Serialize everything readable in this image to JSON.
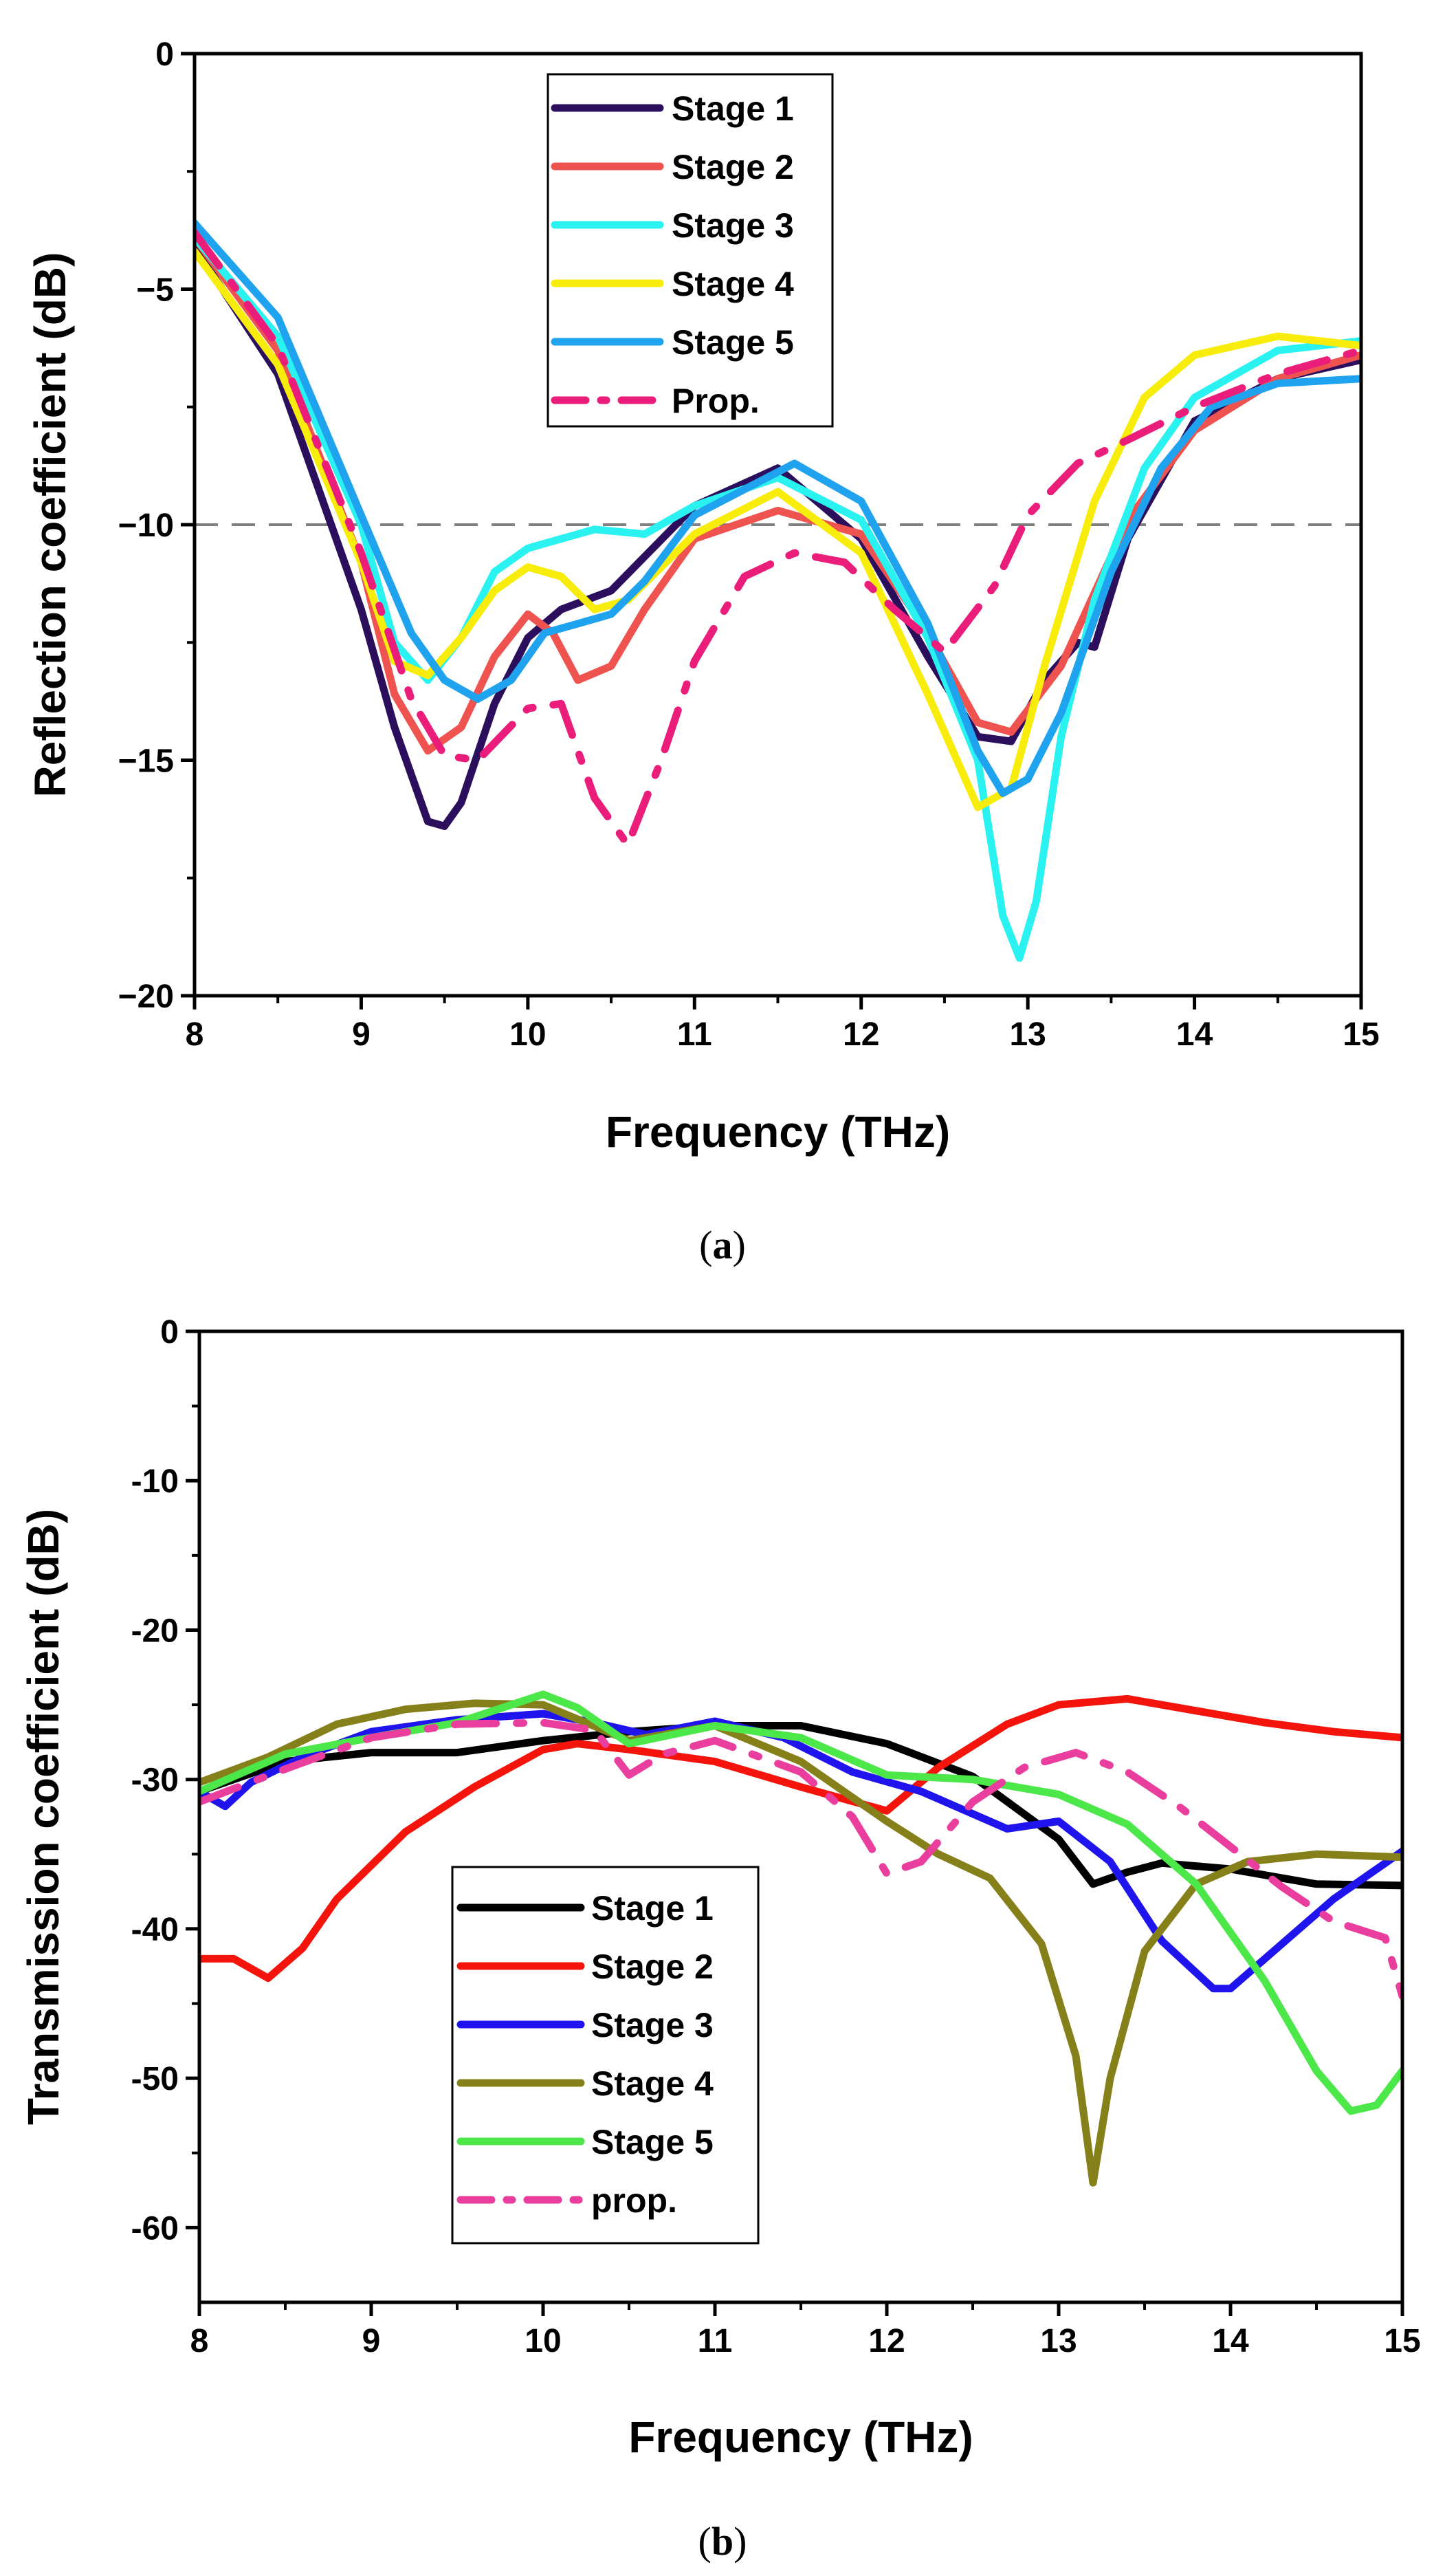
{
  "chart_data": [
    {
      "type": "line",
      "panel_label": "a",
      "xlabel": "Frequency (THz)",
      "ylabel": "Reflection coefficient (dB)",
      "xlim": [
        8,
        15
      ],
      "ylim": [
        -20,
        0
      ],
      "xticks": [
        8,
        9,
        10,
        11,
        12,
        13,
        14,
        15
      ],
      "yticks": [
        0,
        -5,
        -10,
        -15,
        -20
      ],
      "ytick_labels": [
        "0",
        "−5",
        "−10",
        "−15",
        "−20"
      ],
      "reference_line": {
        "y": -10,
        "style": "dashed",
        "color": "#808080"
      },
      "legend_position": "top-center",
      "series": [
        {
          "name": "Stage 1",
          "color": "#2b0f5c",
          "dash": "solid",
          "x": [
            8,
            8.5,
            9,
            9.2,
            9.4,
            9.5,
            9.6,
            9.8,
            10,
            10.2,
            10.5,
            11,
            11.5,
            12,
            12.4,
            12.7,
            12.9,
            13.1,
            13.3,
            13.4,
            13.6,
            14,
            14.5,
            15
          ],
          "y": [
            -4.1,
            -6.8,
            -11.8,
            -14.3,
            -16.3,
            -16.4,
            -15.9,
            -13.8,
            -12.4,
            -11.8,
            -11.4,
            -9.6,
            -8.8,
            -10.3,
            -12.8,
            -14.5,
            -14.6,
            -13.3,
            -12.5,
            -12.6,
            -10.3,
            -7.8,
            -6.9,
            -6.5
          ]
        },
        {
          "name": "Stage 2",
          "color": "#ef5350",
          "dash": "solid",
          "x": [
            8,
            8.5,
            9,
            9.2,
            9.4,
            9.6,
            9.8,
            10,
            10.15,
            10.3,
            10.5,
            10.7,
            11,
            11.5,
            12,
            12.4,
            12.7,
            12.9,
            13.2,
            13.6,
            14,
            14.5,
            15
          ],
          "y": [
            -3.9,
            -6.3,
            -10.8,
            -13.6,
            -14.8,
            -14.3,
            -12.8,
            -11.9,
            -12.3,
            -13.3,
            -13.0,
            -11.8,
            -10.3,
            -9.7,
            -10.2,
            -12.3,
            -14.2,
            -14.4,
            -13.0,
            -9.9,
            -8.0,
            -6.9,
            -6.4
          ]
        },
        {
          "name": "Stage 3",
          "color": "#29f2f0",
          "dash": "solid",
          "x": [
            8,
            8.5,
            9,
            9.2,
            9.4,
            9.6,
            9.8,
            10,
            10.2,
            10.4,
            10.7,
            11,
            11.5,
            12,
            12.4,
            12.7,
            12.85,
            12.95,
            13.05,
            13.2,
            13.4,
            13.7,
            14,
            14.5,
            15
          ],
          "y": [
            -3.9,
            -6.0,
            -10.0,
            -12.5,
            -13.3,
            -12.4,
            -11.0,
            -10.5,
            -10.3,
            -10.1,
            -10.2,
            -9.6,
            -9.0,
            -9.9,
            -12.4,
            -15.0,
            -18.3,
            -19.2,
            -18.0,
            -14.5,
            -11.6,
            -8.8,
            -7.3,
            -6.3,
            -6.1
          ]
        },
        {
          "name": "Stage 4",
          "color": "#f7ec0a",
          "dash": "solid",
          "x": [
            8,
            8.5,
            9,
            9.2,
            9.4,
            9.6,
            9.8,
            10,
            10.2,
            10.4,
            10.6,
            11,
            11.5,
            12,
            12.4,
            12.7,
            12.9,
            13.1,
            13.4,
            13.7,
            14,
            14.5,
            15
          ],
          "y": [
            -4.2,
            -6.6,
            -10.8,
            -12.9,
            -13.2,
            -12.4,
            -11.4,
            -10.9,
            -11.1,
            -11.8,
            -11.6,
            -10.2,
            -9.3,
            -10.6,
            -13.6,
            -16.0,
            -15.6,
            -13.0,
            -9.5,
            -7.3,
            -6.4,
            -6.0,
            -6.2
          ]
        },
        {
          "name": "Stage 5",
          "color": "#1fa3ef",
          "dash": "solid",
          "x": [
            8,
            8.5,
            9,
            9.3,
            9.5,
            9.7,
            9.9,
            10.1,
            10.3,
            10.5,
            10.7,
            11,
            11.6,
            12,
            12.4,
            12.7,
            12.85,
            13,
            13.2,
            13.5,
            13.8,
            14.1,
            14.5,
            15
          ],
          "y": [
            -3.6,
            -5.6,
            -9.8,
            -12.3,
            -13.3,
            -13.7,
            -13.3,
            -12.3,
            -12.1,
            -11.9,
            -11.2,
            -9.8,
            -8.7,
            -9.5,
            -12.1,
            -14.8,
            -15.7,
            -15.4,
            -14.0,
            -11.0,
            -8.8,
            -7.5,
            -7.0,
            -6.9
          ]
        },
        {
          "name": "Prop.",
          "color": "#ea1e7a",
          "dash": "dashdot",
          "x": [
            8,
            8.5,
            9,
            9.3,
            9.5,
            9.7,
            10,
            10.2,
            10.4,
            10.6,
            10.8,
            11,
            11.3,
            11.6,
            11.9,
            12.2,
            12.5,
            12.8,
            13,
            13.3,
            13.6,
            14,
            14.5,
            15
          ],
          "y": [
            -3.8,
            -6.2,
            -10.6,
            -13.7,
            -14.9,
            -15.0,
            -13.9,
            -13.8,
            -15.8,
            -16.8,
            -15.0,
            -12.9,
            -11.1,
            -10.6,
            -10.8,
            -11.8,
            -12.7,
            -11.3,
            -9.8,
            -8.7,
            -8.2,
            -7.5,
            -6.8,
            -6.3
          ]
        }
      ]
    },
    {
      "type": "line",
      "panel_label": "b",
      "xlabel": "Frequency (THz)",
      "ylabel": "Transmission coefficient (dB)",
      "xlim": [
        8,
        15
      ],
      "ylim": [
        -65,
        0
      ],
      "xticks": [
        8,
        9,
        10,
        11,
        12,
        13,
        14,
        15
      ],
      "yticks": [
        0,
        -10,
        -20,
        -30,
        -40,
        -50,
        -60
      ],
      "ytick_labels": [
        "0",
        "-10",
        "-20",
        "-30",
        "-40",
        "-50",
        "-60"
      ],
      "legend_position": "bottom-left",
      "series": [
        {
          "name": "Stage 1",
          "color": "#000000",
          "dash": "solid",
          "x": [
            8,
            8.5,
            9,
            9.5,
            10,
            10.5,
            11,
            11.5,
            12,
            12.5,
            13,
            13.2,
            13.4,
            13.6,
            14,
            14.5,
            15
          ],
          "y": [
            -30.8,
            -28.8,
            -28.2,
            -28.2,
            -27.4,
            -26.8,
            -26.4,
            -26.4,
            -27.6,
            -29.8,
            -34.0,
            -37.0,
            -36.2,
            -35.6,
            -36.0,
            -37.0,
            -37.1
          ]
        },
        {
          "name": "Stage 2",
          "color": "#f5140c",
          "dash": "solid",
          "x": [
            8,
            8.2,
            8.4,
            8.6,
            8.8,
            9.2,
            9.6,
            10,
            10.2,
            10.5,
            11,
            11.5,
            12,
            12.3,
            12.7,
            13,
            13.4,
            13.8,
            14.2,
            14.6,
            15
          ],
          "y": [
            -42.0,
            -42.0,
            -43.3,
            -41.3,
            -38.0,
            -33.5,
            -30.5,
            -28.0,
            -27.6,
            -28.0,
            -28.8,
            -30.5,
            -32.1,
            -29.2,
            -26.3,
            -25.0,
            -24.6,
            -25.4,
            -26.2,
            -26.8,
            -27.2
          ]
        },
        {
          "name": "Stage 3",
          "color": "#1f14ee",
          "dash": "solid",
          "x": [
            8,
            8.15,
            8.3,
            8.6,
            9,
            9.5,
            10,
            10.3,
            10.6,
            11,
            11.4,
            11.8,
            12.2,
            12.5,
            12.7,
            13,
            13.3,
            13.6,
            13.9,
            14.0,
            14.3,
            14.6,
            15
          ],
          "y": [
            -30.8,
            -31.8,
            -30.2,
            -28.5,
            -26.8,
            -26.0,
            -25.6,
            -26.2,
            -27.0,
            -26.1,
            -27.2,
            -29.5,
            -30.8,
            -32.3,
            -33.3,
            -32.8,
            -35.5,
            -40.8,
            -44.0,
            -44.0,
            -41.0,
            -38.0,
            -34.8
          ]
        },
        {
          "name": "Stage 4",
          "color": "#85801a",
          "dash": "solid",
          "x": [
            8,
            8.4,
            8.8,
            9.2,
            9.6,
            10,
            10.5,
            11,
            11.5,
            12,
            12.3,
            12.6,
            12.9,
            13.1,
            13.2,
            13.3,
            13.5,
            13.8,
            14.1,
            14.5,
            15
          ],
          "y": [
            -30.2,
            -28.5,
            -26.3,
            -25.3,
            -24.9,
            -25.0,
            -27.4,
            -26.4,
            -28.8,
            -32.8,
            -35.0,
            -36.6,
            -41.0,
            -48.5,
            -57.0,
            -50.0,
            -41.5,
            -37.0,
            -35.5,
            -35.0,
            -35.2
          ]
        },
        {
          "name": "Stage 5",
          "color": "#4ce84a",
          "dash": "solid",
          "x": [
            8,
            8.5,
            9,
            9.5,
            10,
            10.2,
            10.5,
            11,
            11.5,
            12,
            12.5,
            13,
            13.4,
            13.8,
            14.2,
            14.5,
            14.7,
            14.85,
            15
          ],
          "y": [
            -30.8,
            -28.3,
            -27.2,
            -26.2,
            -24.3,
            -25.2,
            -27.6,
            -26.4,
            -27.2,
            -29.7,
            -30.0,
            -31.0,
            -33.0,
            -37.0,
            -43.5,
            -49.5,
            -52.2,
            -51.8,
            -49.5
          ]
        },
        {
          "name": "prop.",
          "color": "#ea3e9e",
          "dash": "dashdot",
          "x": [
            8,
            8.5,
            9,
            9.5,
            10,
            10.3,
            10.5,
            10.7,
            11,
            11.5,
            11.8,
            12,
            12.2,
            12.5,
            12.8,
            13.1,
            13.4,
            13.7,
            14,
            14.3,
            14.6,
            14.9,
            15
          ],
          "y": [
            -31.5,
            -29.3,
            -27.2,
            -26.3,
            -26.2,
            -26.7,
            -29.7,
            -28.3,
            -27.4,
            -29.5,
            -32.5,
            -36.3,
            -35.5,
            -31.5,
            -29.2,
            -28.2,
            -29.5,
            -31.8,
            -34.5,
            -37.2,
            -39.5,
            -40.6,
            -44.5
          ]
        }
      ]
    }
  ]
}
